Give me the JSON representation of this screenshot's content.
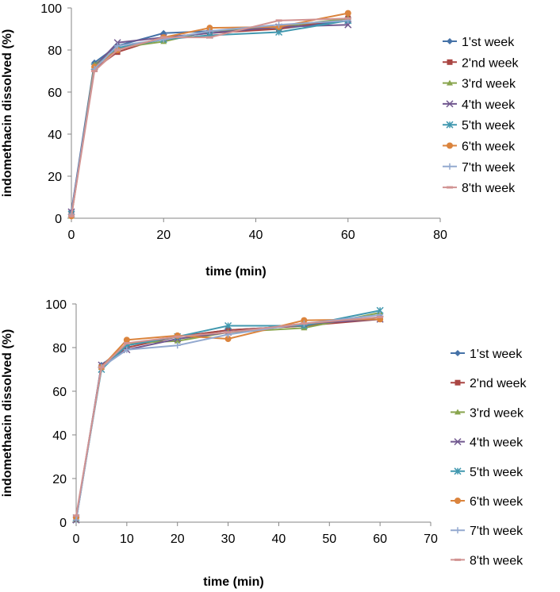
{
  "chart_data": [
    {
      "type": "line",
      "title": "",
      "xlabel": "time (min)",
      "ylabel": "indomethacin dissolved (%)",
      "xlim": [
        0,
        80
      ],
      "ylim": [
        0,
        100
      ],
      "xticks": [
        0,
        20,
        40,
        60,
        80
      ],
      "yticks": [
        0,
        20,
        40,
        60,
        80,
        100
      ],
      "grid": false,
      "legend": "right",
      "x": [
        0,
        5,
        10,
        20,
        30,
        45,
        60
      ],
      "series": [
        {
          "name": "1'st week",
          "color": "#4572A7",
          "marker": "diamond",
          "values": [
            3,
            74,
            82,
            88,
            89,
            90,
            94
          ]
        },
        {
          "name": "2'nd week",
          "color": "#AA4643",
          "marker": "square",
          "values": [
            2,
            71,
            79,
            86,
            88,
            90,
            95
          ]
        },
        {
          "name": "3'rd week",
          "color": "#89A54E",
          "marker": "triangle",
          "values": [
            1,
            73,
            81,
            84,
            89,
            91,
            95
          ]
        },
        {
          "name": "4'th week",
          "color": "#71588F",
          "marker": "x",
          "values": [
            3,
            72,
            83.5,
            86,
            88,
            91,
            92
          ]
        },
        {
          "name": "5'th week",
          "color": "#4198AF",
          "marker": "star",
          "values": [
            2,
            72,
            81,
            85,
            87,
            88.5,
            94
          ]
        },
        {
          "name": "6'th week",
          "color": "#DB843D",
          "marker": "circle",
          "values": [
            1,
            72,
            80,
            86,
            90.5,
            91,
            97.5
          ]
        },
        {
          "name": "7'th week",
          "color": "#93A9CF",
          "marker": "plus",
          "values": [
            2,
            71,
            82,
            85,
            89,
            92,
            94
          ]
        },
        {
          "name": "8'th week",
          "color": "#D19392",
          "marker": "dash",
          "values": [
            1,
            70,
            80,
            86,
            86,
            94,
            95
          ]
        }
      ]
    },
    {
      "type": "line",
      "title": "",
      "xlabel": "time (min)",
      "ylabel": "indomethacin dissolved (%)",
      "xlim": [
        0,
        70
      ],
      "ylim": [
        0,
        100
      ],
      "xticks": [
        0,
        10,
        20,
        30,
        40,
        50,
        60,
        70
      ],
      "yticks": [
        0,
        20,
        40,
        60,
        80,
        100
      ],
      "grid": false,
      "legend": "right",
      "x": [
        0,
        5,
        10,
        20,
        30,
        45,
        60
      ],
      "series": [
        {
          "name": "1'st week",
          "color": "#4572A7",
          "marker": "diamond",
          "values": [
            2,
            72,
            81,
            85,
            88,
            90,
            94
          ]
        },
        {
          "name": "2'nd week",
          "color": "#AA4643",
          "marker": "square",
          "values": [
            2,
            71,
            80,
            85,
            88,
            90,
            93
          ]
        },
        {
          "name": "3'rd week",
          "color": "#89A54E",
          "marker": "triangle",
          "values": [
            1,
            71,
            82,
            83,
            87,
            89,
            96
          ]
        },
        {
          "name": "4'th week",
          "color": "#71588F",
          "marker": "x",
          "values": [
            1,
            72,
            79,
            84,
            87,
            91,
            93
          ]
        },
        {
          "name": "5'th week",
          "color": "#4198AF",
          "marker": "star",
          "values": [
            2,
            70,
            81,
            85,
            90,
            90,
            97
          ]
        },
        {
          "name": "6'th week",
          "color": "#DB843D",
          "marker": "circle",
          "values": [
            2,
            71,
            83.5,
            85.5,
            84,
            92.5,
            93
          ]
        },
        {
          "name": "7'th week",
          "color": "#93A9CF",
          "marker": "plus",
          "values": [
            1,
            71,
            79,
            81,
            86,
            91,
            95
          ]
        },
        {
          "name": "8'th week",
          "color": "#D19392",
          "marker": "dash",
          "values": [
            3,
            71,
            82,
            85,
            87,
            91,
            94
          ]
        }
      ]
    }
  ]
}
